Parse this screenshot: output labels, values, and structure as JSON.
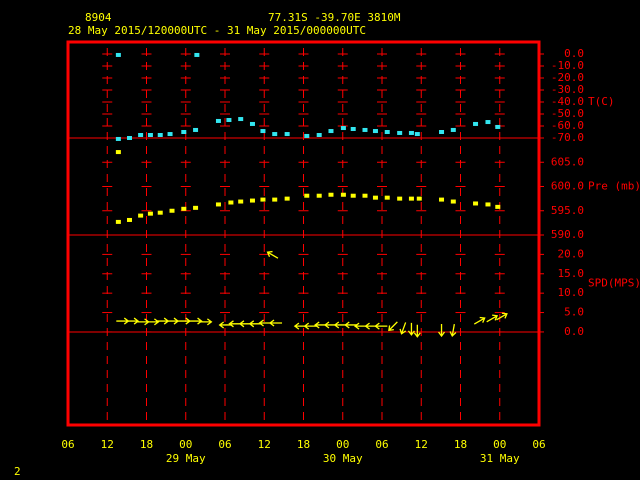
{
  "chart_data": {
    "type": "scatter",
    "station": "8904",
    "location": "77.31S  -39.70E  3810M",
    "subtitle": "28 May 2015/120000UTC - 31 May 2015/000000UTC",
    "page_number": "2",
    "frame_color": "#ff0000",
    "text_color": "#ffff00",
    "xlim": [
      0,
      72
    ],
    "xticks": [
      {
        "value": 0,
        "label": "06"
      },
      {
        "value": 6,
        "label": "12"
      },
      {
        "value": 12,
        "label": "18"
      },
      {
        "value": 18,
        "label": "00"
      },
      {
        "value": 24,
        "label": "06"
      },
      {
        "value": 30,
        "label": "12"
      },
      {
        "value": 36,
        "label": "18"
      },
      {
        "value": 42,
        "label": "00"
      },
      {
        "value": 48,
        "label": "06"
      },
      {
        "value": 54,
        "label": "12"
      },
      {
        "value": 60,
        "label": "18"
      },
      {
        "value": 66,
        "label": "00"
      },
      {
        "value": 72,
        "label": "06"
      }
    ],
    "day_ticks": [
      {
        "value": 18,
        "label": "29 May"
      },
      {
        "value": 42,
        "label": "30 May"
      },
      {
        "value": 66,
        "label": "31 May"
      }
    ],
    "panels": [
      {
        "label": "T(C)",
        "ylim": [
          -70,
          10
        ],
        "yticks": [
          {
            "value": 0,
            "label": "0.0"
          },
          {
            "value": -10,
            "label": "-10.0"
          },
          {
            "value": -20,
            "label": "-20.0"
          },
          {
            "value": -30,
            "label": "-30.0"
          },
          {
            "value": -40,
            "label": "-40.0"
          },
          {
            "value": -50,
            "label": "-50.0"
          },
          {
            "value": -60,
            "label": "-60.0"
          },
          {
            "value": -70,
            "label": "-70.0"
          }
        ],
        "series": [
          {
            "marker": "square",
            "color": "#33e6f0",
            "x": [
              7.7,
              7.7,
              9.4,
              11.1,
              12.6,
              14.1,
              15.6,
              17.7,
              19.5,
              19.7,
              23.0,
              24.6,
              26.4,
              28.2,
              29.8,
              31.6,
              33.5,
              36.5,
              38.4,
              40.2,
              42.1,
              43.6,
              45.4,
              47.0,
              48.8,
              50.7,
              52.5,
              53.4,
              57.1,
              58.9,
              62.3,
              64.2,
              65.7
            ],
            "values": [
              -0.8,
              -70.8,
              -70.0,
              -67.5,
              -67.5,
              -67.5,
              -66.7,
              -65.0,
              -63.3,
              -0.8,
              -55.8,
              -55.0,
              -54.2,
              -58.3,
              -64.2,
              -66.7,
              -66.7,
              -68.3,
              -67.5,
              -64.2,
              -61.7,
              -62.5,
              -63.3,
              -64.2,
              -65.0,
              -65.8,
              -65.8,
              -66.7,
              -65.0,
              -63.3,
              -58.3,
              -56.7,
              -60.8
            ]
          }
        ]
      },
      {
        "label": "Pre (mb)",
        "ylim": [
          590,
          610
        ],
        "yticks": [
          {
            "value": 605,
            "label": "605.0"
          },
          {
            "value": 600,
            "label": "600.0"
          },
          {
            "value": 595,
            "label": "595.0"
          },
          {
            "value": 590,
            "label": "590.0"
          }
        ],
        "series": [
          {
            "marker": "square",
            "color": "#ffff00",
            "x": [
              7.7,
              7.7,
              9.4,
              11.1,
              12.6,
              14.1,
              15.9,
              17.7,
              19.5,
              23.0,
              24.9,
              26.4,
              28.2,
              29.8,
              31.6,
              33.5,
              36.5,
              38.4,
              40.2,
              42.1,
              43.6,
              45.4,
              47.0,
              48.8,
              50.7,
              52.5,
              53.7,
              57.1,
              58.9,
              62.3,
              64.2,
              65.7
            ],
            "values": [
              607.1,
              592.7,
              593.1,
              594.0,
              594.4,
              594.6,
              595.0,
              595.4,
              595.6,
              596.3,
              596.7,
              596.9,
              597.1,
              597.3,
              597.3,
              597.5,
              598.1,
              598.1,
              598.3,
              598.3,
              598.1,
              598.1,
              597.7,
              597.7,
              597.5,
              597.5,
              597.5,
              597.3,
              596.9,
              596.5,
              596.3,
              595.8
            ]
          }
        ]
      },
      {
        "label": "SPD(MPS)",
        "ylim": [
          -24,
          25
        ],
        "yticks": [
          {
            "value": 20,
            "label": "20.0"
          },
          {
            "value": 15,
            "label": "15.0"
          },
          {
            "value": 10,
            "label": "10.0"
          },
          {
            "value": 5,
            "label": "5.0"
          },
          {
            "value": 0,
            "label": "0.0"
          }
        ],
        "series": [
          {
            "marker": "arrow",
            "color": "#ffff00",
            "x": [
              8.3,
              9.8,
              11.4,
              12.9,
              14.4,
              15.9,
              17.7,
              19.5,
              21.0,
              24.1,
              25.6,
              27.2,
              28.7,
              30.2,
              31.3,
              31.8,
              35.6,
              37.1,
              38.7,
              40.2,
              41.7,
              43.3,
              44.8,
              46.4,
              47.9,
              49.7,
              51.3,
              52.5,
              53.4,
              57.1,
              58.9,
              62.9,
              64.8,
              66.3
            ],
            "values": [
              2.8,
              2.8,
              2.6,
              2.6,
              2.8,
              2.8,
              2.8,
              2.8,
              2.6,
              1.8,
              2.1,
              2.1,
              2.1,
              2.3,
              19.8,
              2.3,
              1.5,
              1.5,
              1.8,
              1.8,
              1.8,
              1.8,
              1.5,
              1.5,
              1.5,
              1.5,
              1.0,
              0.8,
              0.3,
              0.5,
              0.5,
              2.8,
              3.4,
              3.9
            ],
            "directions": [
              90,
              90,
              90,
              90,
              90,
              90,
              90,
              90,
              90,
              270,
              270,
              270,
              270,
              270,
              300,
              270,
              270,
              270,
              270,
              270,
              270,
              270,
              270,
              270,
              270,
              225,
              200,
              180,
              180,
              180,
              190,
              60,
              60,
              60
            ]
          }
        ]
      }
    ]
  }
}
